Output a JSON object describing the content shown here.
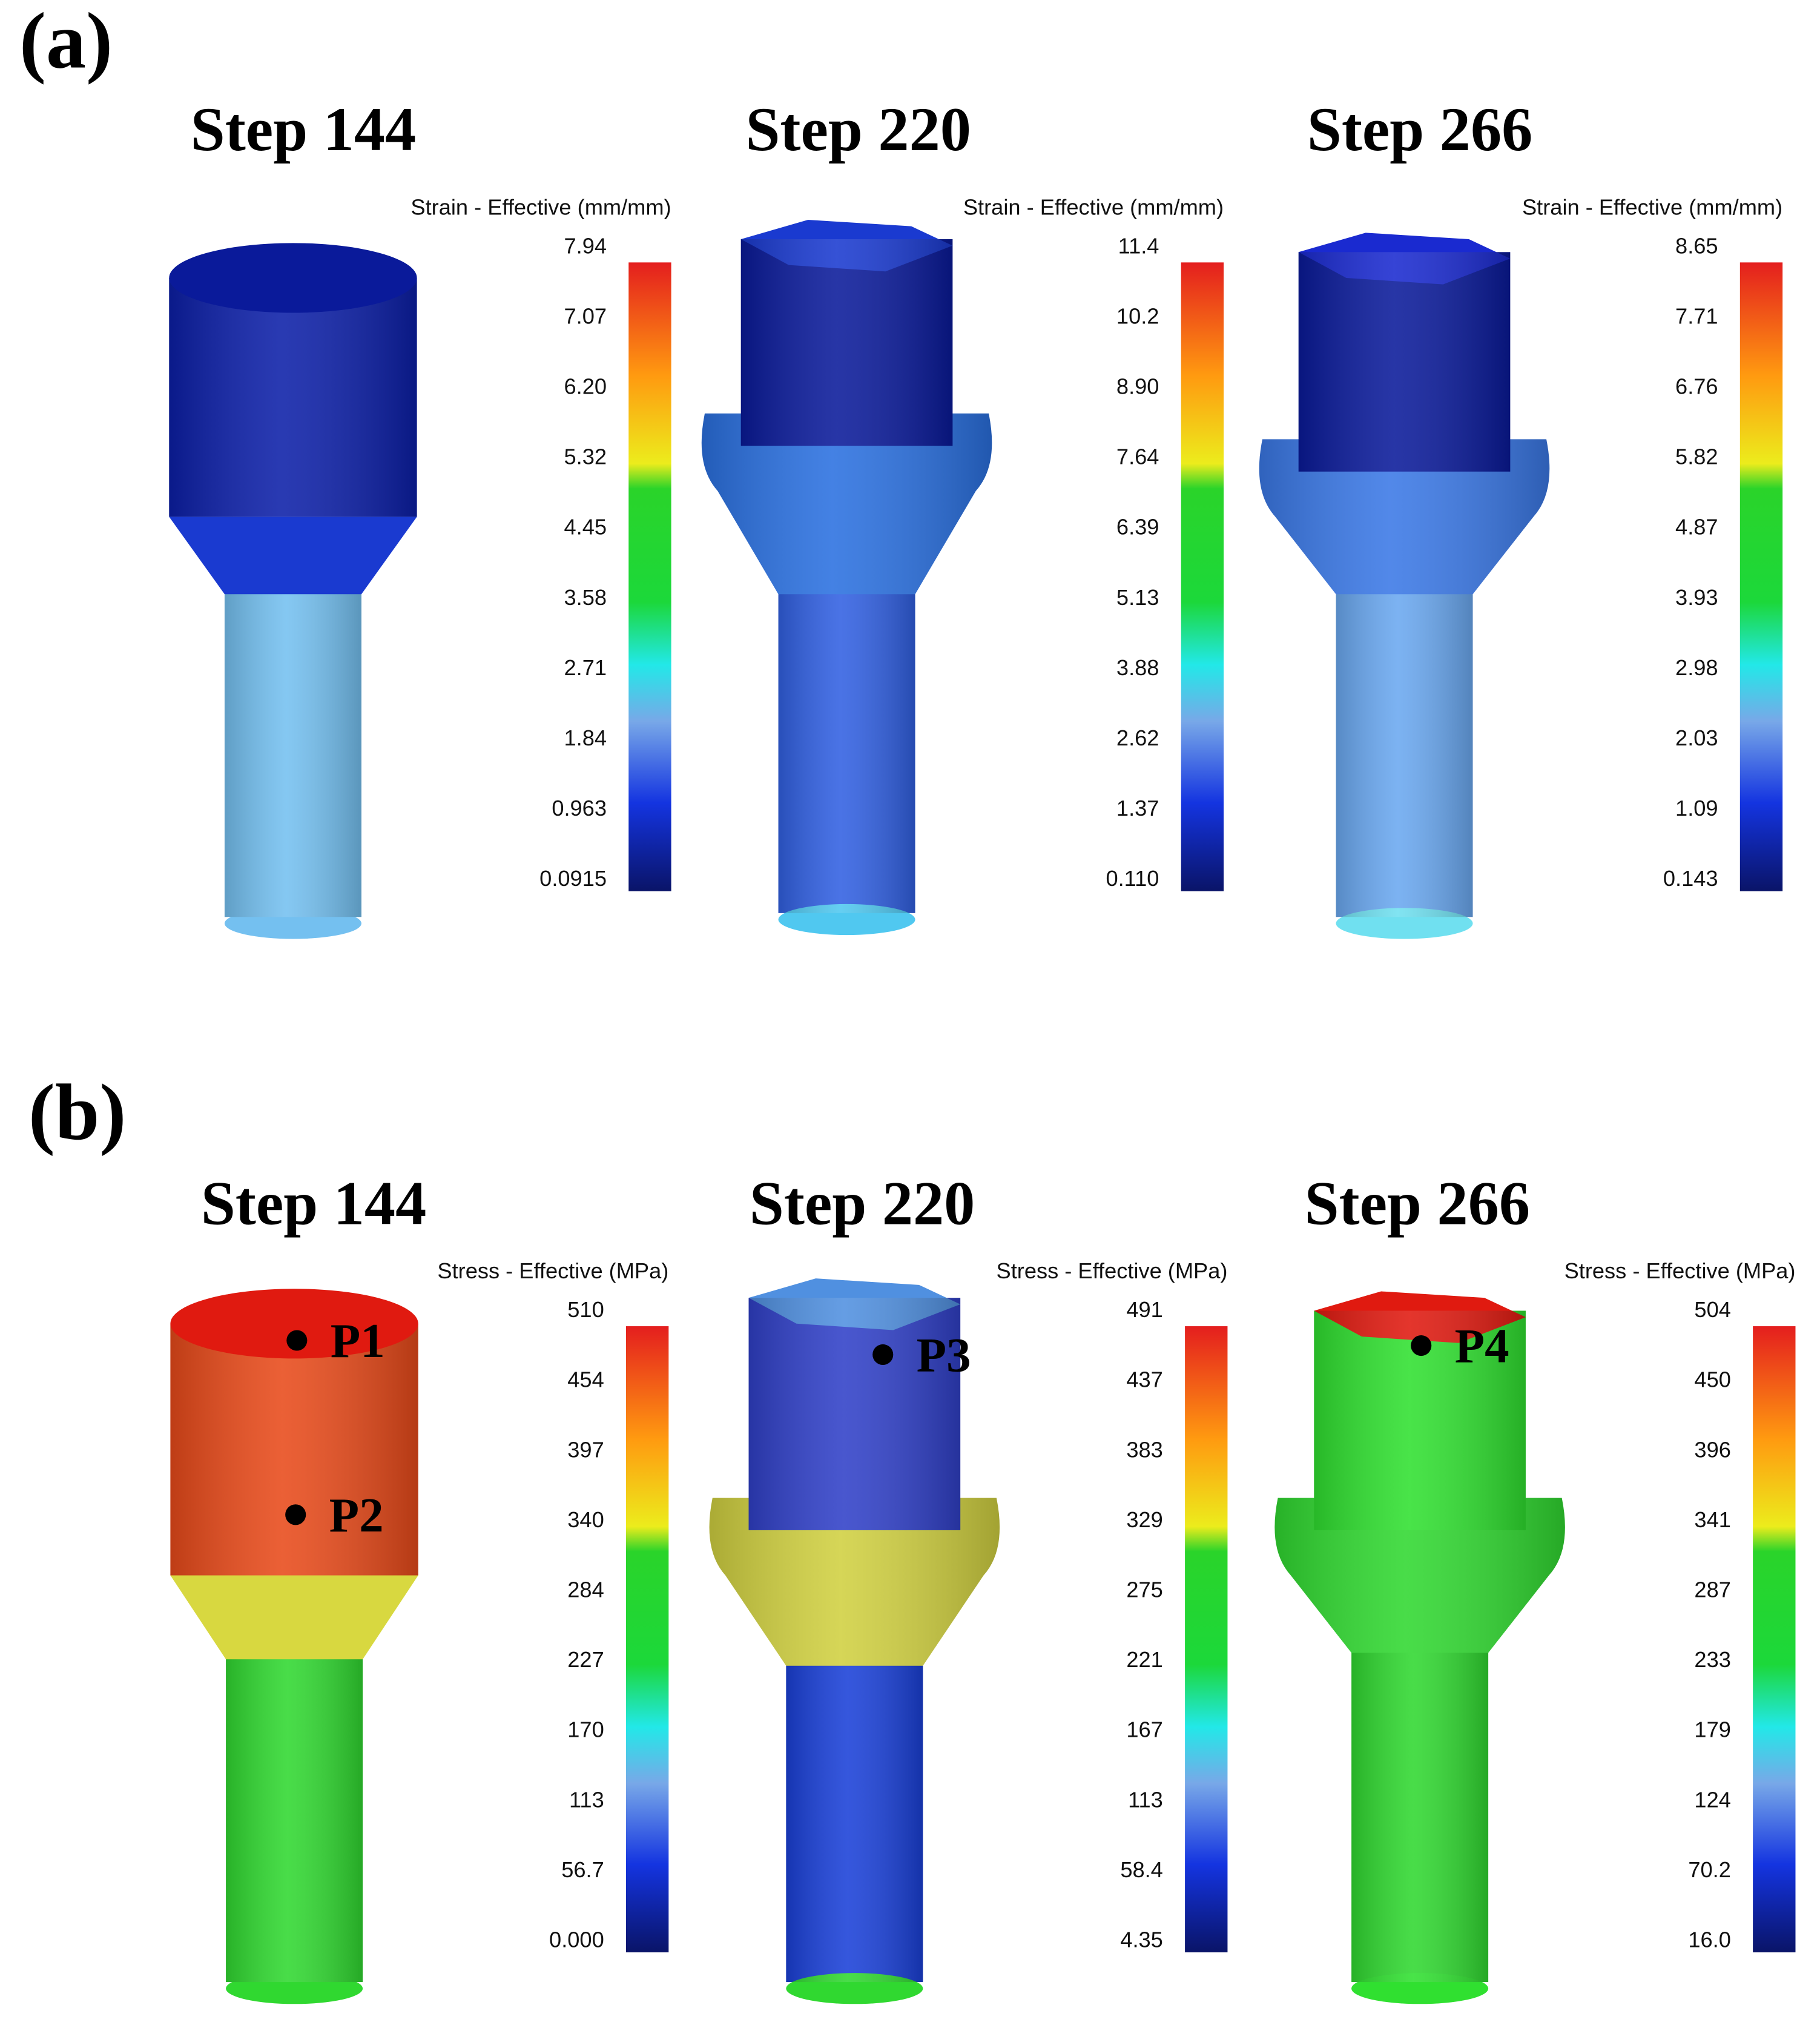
{
  "panels": [
    {
      "label": "(a)",
      "steps": [
        {
          "title": "Step 144",
          "legend_title": "Strain - Effective (mm/mm)",
          "scale_labels": [
            "7.94",
            "7.07",
            "6.20",
            "5.32",
            "4.45",
            "3.58",
            "2.71",
            "1.84",
            "0.963",
            "0.0915"
          ]
        },
        {
          "title": "Step 220",
          "legend_title": "Strain - Effective (mm/mm)",
          "scale_labels": [
            "11.4",
            "10.2",
            "8.90",
            "7.64",
            "6.39",
            "5.13",
            "3.88",
            "2.62",
            "1.37",
            "0.110"
          ]
        },
        {
          "title": "Step 266",
          "legend_title": "Strain - Effective (mm/mm)",
          "scale_labels": [
            "8.65",
            "7.71",
            "6.76",
            "5.82",
            "4.87",
            "3.93",
            "2.98",
            "2.03",
            "1.09",
            "0.143"
          ]
        }
      ]
    },
    {
      "label": "(b)",
      "steps": [
        {
          "title": "Step 144",
          "legend_title": "Stress - Effective (MPa)",
          "scale_labels": [
            "510",
            "454",
            "397",
            "340",
            "284",
            "227",
            "170",
            "113",
            "56.7",
            "0.000"
          ],
          "points": [
            "P1",
            "P2"
          ]
        },
        {
          "title": "Step 220",
          "legend_title": "Stress - Effective (MPa)",
          "scale_labels": [
            "491",
            "437",
            "383",
            "329",
            "275",
            "221",
            "167",
            "113",
            "58.4",
            "4.35"
          ],
          "points": [
            "P3"
          ]
        },
        {
          "title": "Step 266",
          "legend_title": "Stress - Effective (MPa)",
          "scale_labels": [
            "504",
            "450",
            "396",
            "341",
            "287",
            "233",
            "179",
            "124",
            "70.2",
            "16.0"
          ],
          "points": [
            "P4"
          ]
        }
      ]
    }
  ]
}
